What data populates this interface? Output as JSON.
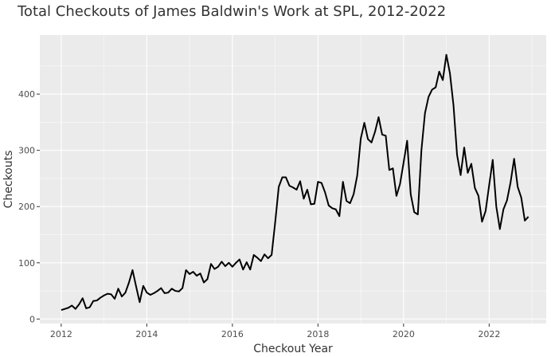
{
  "chart_data": {
    "type": "line",
    "title": "Total Checkouts of James Baldwin's Work at SPL, 2012-2022",
    "xlabel": "Checkout Year",
    "ylabel": "Checkouts",
    "xlim": [
      "2011-07-01",
      "2023-05-01"
    ],
    "ylim": [
      -8,
      505
    ],
    "x_ticks": [
      "2012",
      "2014",
      "2016",
      "2018",
      "2020",
      "2022"
    ],
    "y_ticks": [
      0,
      100,
      200,
      300,
      400
    ],
    "grid": true,
    "legend": "none",
    "colors": {
      "line": "#000000",
      "panel": "#ebebeb",
      "grid": "#ffffff"
    },
    "series": [
      {
        "x": [
          "2012-01",
          "2012-02",
          "2012-03",
          "2012-04",
          "2012-05",
          "2012-06",
          "2012-07",
          "2012-08",
          "2012-09",
          "2012-10",
          "2012-11",
          "2012-12",
          "2013-01",
          "2013-02",
          "2013-03",
          "2013-04",
          "2013-05",
          "2013-06",
          "2013-07",
          "2013-08",
          "2013-09",
          "2013-10",
          "2013-11",
          "2013-12",
          "2014-01",
          "2014-02",
          "2014-03",
          "2014-04",
          "2014-05",
          "2014-06",
          "2014-07",
          "2014-08",
          "2014-09",
          "2014-10",
          "2014-11",
          "2014-12",
          "2015-01",
          "2015-02",
          "2015-03",
          "2015-04",
          "2015-05",
          "2015-06",
          "2015-07",
          "2015-08",
          "2015-09",
          "2015-10",
          "2015-11",
          "2015-12",
          "2016-01",
          "2016-02",
          "2016-03",
          "2016-04",
          "2016-05",
          "2016-06",
          "2016-07",
          "2016-08",
          "2016-09",
          "2016-10",
          "2016-11",
          "2016-12",
          "2017-01",
          "2017-02",
          "2017-03",
          "2017-04",
          "2017-05",
          "2017-06",
          "2017-07",
          "2017-08",
          "2017-09",
          "2017-10",
          "2017-11",
          "2017-12",
          "2018-01",
          "2018-02",
          "2018-03",
          "2018-04",
          "2018-05",
          "2018-06",
          "2018-07",
          "2018-08",
          "2018-09",
          "2018-10",
          "2018-11",
          "2018-12",
          "2019-01",
          "2019-02",
          "2019-03",
          "2019-04",
          "2019-05",
          "2019-06",
          "2019-07",
          "2019-08",
          "2019-09",
          "2019-10",
          "2019-11",
          "2019-12",
          "2020-01",
          "2020-02",
          "2020-03",
          "2020-04",
          "2020-05",
          "2020-06",
          "2020-07",
          "2020-08",
          "2020-09",
          "2020-10",
          "2020-11",
          "2020-12",
          "2021-01",
          "2021-02",
          "2021-03",
          "2021-04",
          "2021-05",
          "2021-06",
          "2021-07",
          "2021-08",
          "2021-09",
          "2021-10",
          "2021-11",
          "2021-12",
          "2022-01",
          "2022-02",
          "2022-03",
          "2022-04",
          "2022-05",
          "2022-06",
          "2022-07",
          "2022-08",
          "2022-09",
          "2022-10",
          "2022-11",
          "2022-12"
        ],
        "values": [
          16,
          18,
          20,
          24,
          18,
          26,
          37,
          19,
          21,
          32,
          33,
          38,
          42,
          45,
          44,
          36,
          54,
          40,
          47,
          65,
          87,
          58,
          30,
          59,
          47,
          43,
          46,
          50,
          55,
          46,
          47,
          54,
          50,
          49,
          55,
          87,
          80,
          84,
          77,
          81,
          65,
          71,
          98,
          89,
          93,
          102,
          94,
          100,
          93,
          100,
          106,
          88,
          101,
          88,
          114,
          109,
          103,
          115,
          108,
          114,
          172,
          235,
          252,
          252,
          237,
          234,
          230,
          245,
          214,
          230,
          204,
          205,
          244,
          242,
          225,
          202,
          197,
          195,
          183,
          244,
          210,
          206,
          222,
          255,
          321,
          349,
          320,
          314,
          333,
          359,
          328,
          326,
          265,
          268,
          219,
          240,
          278,
          317,
          222,
          190,
          186,
          300,
          366,
          395,
          408,
          412,
          440,
          425,
          470,
          437,
          380,
          292,
          256,
          305,
          260,
          276,
          233,
          219,
          173,
          192,
          238,
          283,
          200,
          160,
          195,
          211,
          243,
          285,
          235,
          216,
          175,
          182
        ]
      }
    ]
  }
}
